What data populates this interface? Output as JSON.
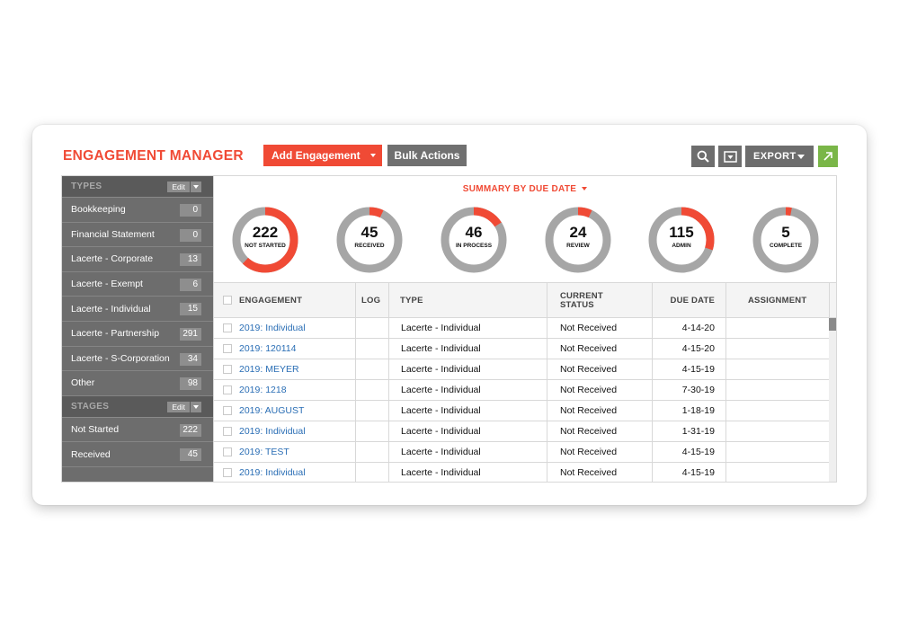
{
  "header": {
    "title": "ENGAGEMENT MANAGER",
    "add_button": "Add Engagement",
    "bulk_button": "Bulk Actions",
    "export_button": "EXPORT"
  },
  "colors": {
    "accent": "#f04a35",
    "ring_gray": "#a6a6a6",
    "green": "#7ab648",
    "link": "#2a6eb5"
  },
  "sidebar": {
    "types_header": "TYPES",
    "stages_header": "STAGES",
    "edit_label": "Edit",
    "types": [
      {
        "label": "Bookkeeping",
        "count": "0"
      },
      {
        "label": "Financial Statement",
        "count": "0"
      },
      {
        "label": "Lacerte - Corporate",
        "count": "13"
      },
      {
        "label": "Lacerte - Exempt",
        "count": "6"
      },
      {
        "label": "Lacerte - Individual",
        "count": "15"
      },
      {
        "label": "Lacerte - Partnership",
        "count": "291"
      },
      {
        "label": "Lacerte - S-Corporation",
        "count": "34"
      },
      {
        "label": "Other",
        "count": "98"
      }
    ],
    "stages": [
      {
        "label": "Not Started",
        "count": "222"
      },
      {
        "label": "Received",
        "count": "45"
      }
    ]
  },
  "summary": {
    "title": "SUMMARY BY DUE DATE",
    "donuts": [
      {
        "value": "222",
        "label": "NOT STARTED",
        "fraction": 0.62
      },
      {
        "value": "45",
        "label": "RECEIVED",
        "fraction": 0.07
      },
      {
        "value": "46",
        "label": "IN PROCESS",
        "fraction": 0.16
      },
      {
        "value": "24",
        "label": "REVIEW",
        "fraction": 0.07
      },
      {
        "value": "115",
        "label": "ADMIN",
        "fraction": 0.3
      },
      {
        "value": "5",
        "label": "COMPLETE",
        "fraction": 0.03
      }
    ]
  },
  "table": {
    "columns": [
      "ENGAGEMENT",
      "LOG",
      "TYPE",
      "CURRENT STATUS",
      "DUE DATE",
      "ASSIGNMENT"
    ],
    "rows": [
      {
        "engagement": "2019: Individual",
        "log": "",
        "type": "Lacerte - Individual",
        "status": "Not Received",
        "due": "4-14-20",
        "assignment": ""
      },
      {
        "engagement": "2019: 120114",
        "log": "",
        "type": "Lacerte - Individual",
        "status": "Not Received",
        "due": "4-15-20",
        "assignment": ""
      },
      {
        "engagement": "2019: MEYER",
        "log": "",
        "type": "Lacerte - Individual",
        "status": "Not Received",
        "due": "4-15-19",
        "assignment": ""
      },
      {
        "engagement": "2019: 1218",
        "log": "",
        "type": "Lacerte - Individual",
        "status": "Not Received",
        "due": "7-30-19",
        "assignment": ""
      },
      {
        "engagement": "2019: AUGUST",
        "log": "",
        "type": "Lacerte - Individual",
        "status": "Not Received",
        "due": "1-18-19",
        "assignment": ""
      },
      {
        "engagement": "2019: Individual",
        "log": "",
        "type": "Lacerte - Individual",
        "status": "Not Received",
        "due": "1-31-19",
        "assignment": ""
      },
      {
        "engagement": "2019: TEST",
        "log": "",
        "type": "Lacerte - Individual",
        "status": "Not Received",
        "due": "4-15-19",
        "assignment": ""
      },
      {
        "engagement": "2019: Individual",
        "log": "",
        "type": "Lacerte - Individual",
        "status": "Not Received",
        "due": "4-15-19",
        "assignment": ""
      }
    ]
  }
}
